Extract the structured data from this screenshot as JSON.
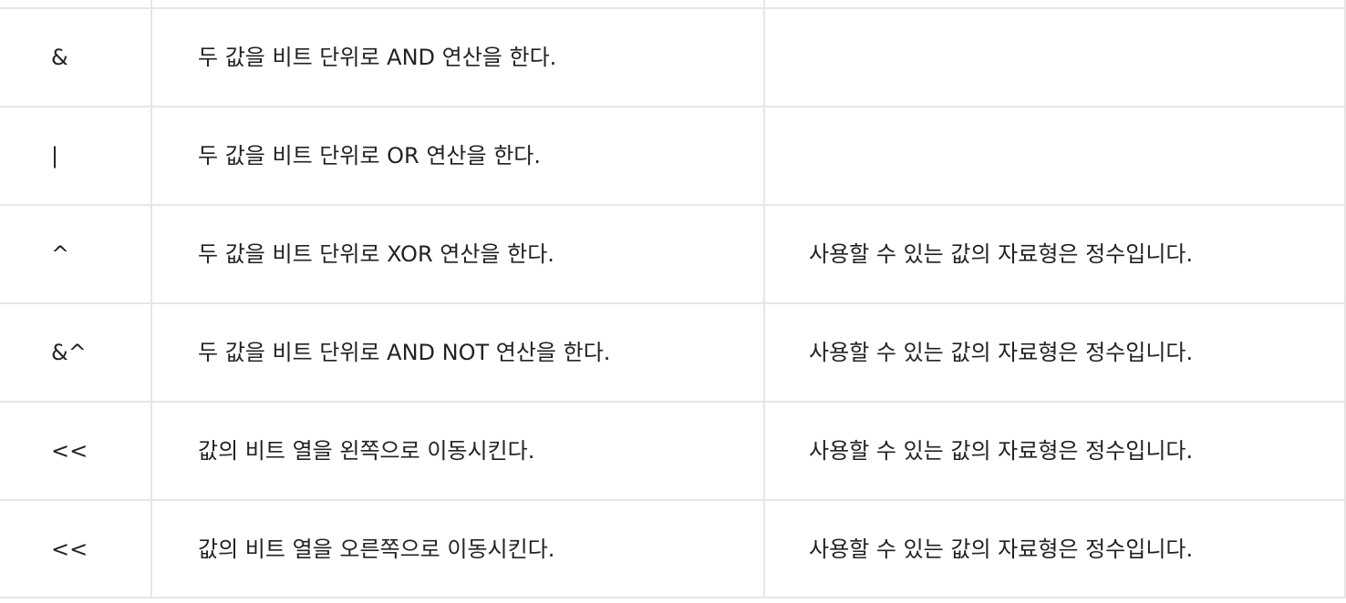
{
  "table": {
    "rows": [
      {
        "operator": "&",
        "description": "두 값을 비트 단위로 AND 연산을 한다.",
        "note": ""
      },
      {
        "operator": "|",
        "description": "두 값을 비트 단위로 OR 연산을 한다.",
        "note": ""
      },
      {
        "operator": "^",
        "description": "두 값을 비트 단위로 XOR 연산을 한다.",
        "note": "사용할 수 있는 값의 자료형은 정수입니다."
      },
      {
        "operator": "&^",
        "description": "두 값을 비트 단위로 AND NOT 연산을 한다.",
        "note": "사용할 수 있는 값의 자료형은 정수입니다."
      },
      {
        "operator": "<<",
        "description": "값의 비트 열을 왼쪽으로 이동시킨다.",
        "note": "사용할 수 있는 값의 자료형은 정수입니다."
      },
      {
        "operator": "<<",
        "description": "값의 비트 열을 오른쪽으로 이동시킨다.",
        "note": "사용할 수 있는 값의 자료형은 정수입니다."
      }
    ]
  }
}
